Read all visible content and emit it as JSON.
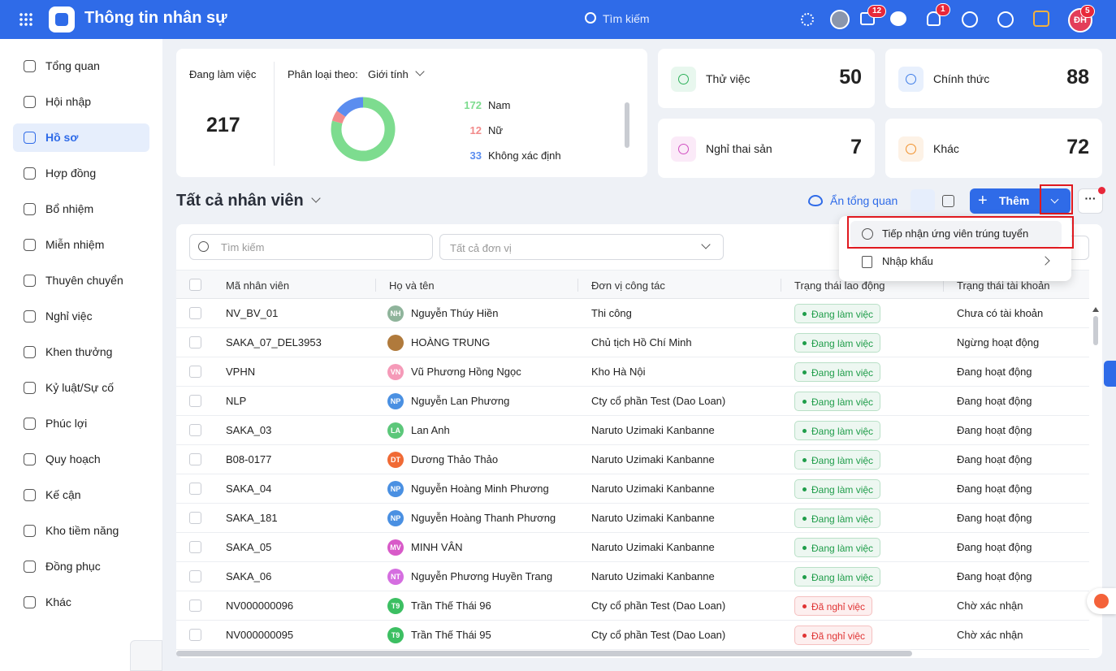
{
  "header": {
    "title": "Thông tin nhân sự",
    "search": "Tìm kiếm",
    "badges": [
      12,
      1,
      5
    ],
    "avatar": "ĐH"
  },
  "sidebar": {
    "active": 2,
    "items": [
      "Tổng quan",
      "Hội nhập",
      "Hồ sơ",
      "Hợp đồng",
      "Bổ nhiệm",
      "Miễn nhiệm",
      "Thuyên chuyển",
      "Nghỉ việc",
      "Khen thưởng",
      "Kỷ luật/Sự cố",
      "Phúc lợi",
      "Quy hoạch",
      "Kế cận",
      "Kho tiềm năng",
      "Đồng phục",
      "Khác"
    ]
  },
  "summary": {
    "working_label": "Đang làm việc",
    "working_count": 217,
    "classify_label": "Phân loại theo:",
    "classify_value": "Giới tính",
    "gender": [
      {
        "count": 172,
        "label": "Nam",
        "color": "#7ddc8f"
      },
      {
        "count": 12,
        "label": "Nữ",
        "color": "#f28b8b"
      },
      {
        "count": 33,
        "label": "Không xác định",
        "color": "#5b8def"
      }
    ]
  },
  "status_cards": [
    {
      "label": "Thử việc",
      "count": 50,
      "color": "#2fb15b",
      "bg": "#e8f7ee"
    },
    {
      "label": "Chính thức",
      "count": 88,
      "color": "#3f7de8",
      "bg": "#e8f0fd"
    },
    {
      "label": "Nghỉ thai sản",
      "count": 7,
      "color": "#d14fc1",
      "bg": "#fbeaf8"
    },
    {
      "label": "Khác",
      "count": 72,
      "color": "#f0902c",
      "bg": "#fdf2e6"
    }
  ],
  "toolbar": {
    "title": "Tất cả nhân viên",
    "hide_overview": "Ẩn tổng quan",
    "add": "Thêm"
  },
  "dropdown": {
    "items": [
      "Tiếp nhận ứng viên trúng tuyển",
      "Nhập khẩu"
    ]
  },
  "filters": {
    "search": "Tìm kiếm",
    "unit": "Tất cả đơn vị"
  },
  "table": {
    "columns": [
      "Mã nhân viên",
      "Họ và tên",
      "Đơn vị công tác",
      "Trạng thái lao động",
      "Trạng thái tài khoản"
    ],
    "rows": [
      {
        "code": "NV_BV_01",
        "avatar": "NH",
        "avatar_color": "#8fb49b",
        "name": "Nguyễn Thúy Hiền",
        "unit": "Thi công",
        "status": "Đang làm việc",
        "status_color": "#1f9d4a",
        "account": "Chưa có tài khoản"
      },
      {
        "code": "SAKA_07_DEL3953",
        "avatar": null,
        "avatar_color": "#b07a3c",
        "name": "HOÀNG TRUNG",
        "unit": "Chủ tịch Hồ Chí Minh",
        "status": "Đang làm việc",
        "status_color": "#1f9d4a",
        "account": "Ngừng hoạt động"
      },
      {
        "code": "VPHN",
        "avatar": "VN",
        "avatar_color": "#f59ab8",
        "name": "Vũ Phương Hồng Ngọc",
        "unit": "Kho Hà Nội",
        "status": "Đang làm việc",
        "status_color": "#1f9d4a",
        "account": "Đang hoạt động"
      },
      {
        "code": "NLP",
        "avatar": "NP",
        "avatar_color": "#4a90e2",
        "name": "Nguyễn Lan Phương",
        "unit": "Cty cổ phần Test (Dao Loan)",
        "status": "Đang làm việc",
        "status_color": "#1f9d4a",
        "account": "Đang hoạt động"
      },
      {
        "code": "SAKA_03",
        "avatar": "LA",
        "avatar_color": "#5cc77a",
        "name": "Lan Anh",
        "unit": "Naruto Uzimaki Kanbanne",
        "status": "Đang làm việc",
        "status_color": "#1f9d4a",
        "account": "Đang hoạt động"
      },
      {
        "code": "B08-0177",
        "avatar": "DT",
        "avatar_color": "#f06a35",
        "name": "Dương Thảo Thảo",
        "unit": "Naruto Uzimaki Kanbanne",
        "status": "Đang làm việc",
        "status_color": "#1f9d4a",
        "account": "Đang hoạt động"
      },
      {
        "code": "SAKA_04",
        "avatar": "NP",
        "avatar_color": "#4a90e2",
        "name": "Nguyễn Hoàng Minh Phương",
        "unit": "Naruto Uzimaki Kanbanne",
        "status": "Đang làm việc",
        "status_color": "#1f9d4a",
        "account": "Đang hoạt động"
      },
      {
        "code": "SAKA_181",
        "avatar": "NP",
        "avatar_color": "#4a90e2",
        "name": "Nguyễn Hoàng Thanh Phương",
        "unit": "Naruto Uzimaki Kanbanne",
        "status": "Đang làm việc",
        "status_color": "#1f9d4a",
        "account": "Đang hoạt động"
      },
      {
        "code": "SAKA_05",
        "avatar": "MV",
        "avatar_color": "#d85ac8",
        "name": "MINH VÂN",
        "unit": "Naruto Uzimaki Kanbanne",
        "status": "Đang làm việc",
        "status_color": "#1f9d4a",
        "account": "Đang hoạt động"
      },
      {
        "code": "SAKA_06",
        "avatar": "NT",
        "avatar_color": "#d56ee0",
        "name": "Nguyễn Phương Huyền Trang",
        "unit": "Naruto Uzimaki Kanbanne",
        "status": "Đang làm việc",
        "status_color": "#1f9d4a",
        "account": "Đang hoạt động"
      },
      {
        "code": "NV000000096",
        "avatar": "T9",
        "avatar_color": "#3cbf62",
        "name": "Trần Thế Thái 96",
        "unit": "Cty cổ phần Test (Dao Loan)",
        "status": "Đã nghỉ việc",
        "status_color": "#e03434",
        "account": "Chờ xác nhận"
      },
      {
        "code": "NV000000095",
        "avatar": "T9",
        "avatar_color": "#3cbf62",
        "name": "Trần Thế Thái 95",
        "unit": "Cty cổ phần Test (Dao Loan)",
        "status": "Đã nghỉ việc",
        "status_color": "#e03434",
        "account": "Chờ xác nhận"
      }
    ]
  }
}
